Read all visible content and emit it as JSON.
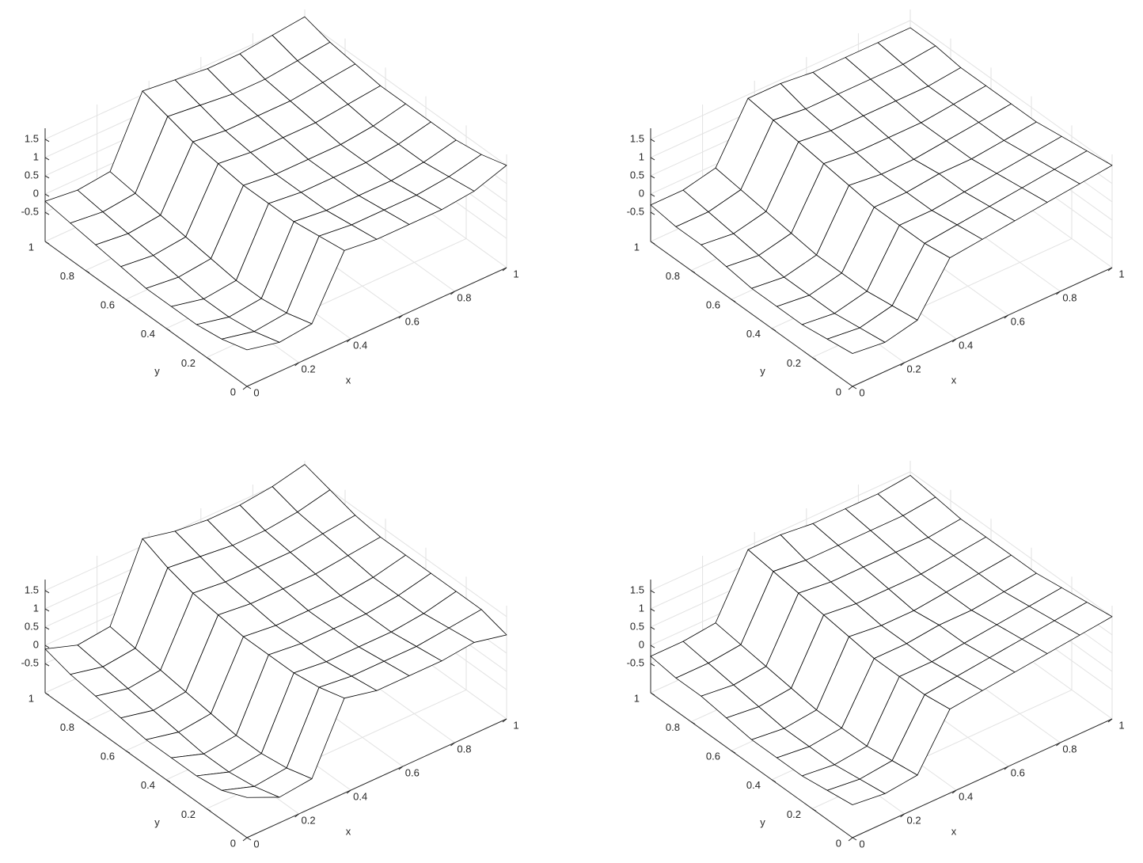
{
  "chart_data": [
    {
      "type": "surface",
      "xlabel": "x",
      "ylabel": "y",
      "x": [
        0,
        0.125,
        0.25,
        0.375,
        0.5,
        0.625,
        0.75,
        0.875,
        1
      ],
      "y": [
        0,
        0.125,
        0.25,
        0.375,
        0.5,
        0.625,
        0.75,
        0.875,
        1
      ],
      "z": [
        [
          -0.3,
          -0.5,
          -0.4,
          1.2,
          1.1,
          1.1,
          1.1,
          1.2,
          1.5
        ],
        [
          -0.5,
          -0.7,
          -0.6,
          1.1,
          1.0,
          1.0,
          1.0,
          1.1,
          1.3
        ],
        [
          -0.6,
          -0.8,
          -0.7,
          1.0,
          0.9,
          0.9,
          0.9,
          1.0,
          1.2
        ],
        [
          -0.6,
          -0.8,
          -0.7,
          1.0,
          0.9,
          0.9,
          0.9,
          1.0,
          1.2
        ],
        [
          -0.6,
          -0.7,
          -0.6,
          1.0,
          0.9,
          0.9,
          0.9,
          1.0,
          1.2
        ],
        [
          -0.5,
          -0.6,
          -0.5,
          1.1,
          1.0,
          1.0,
          1.0,
          1.1,
          1.2
        ],
        [
          -0.4,
          -0.5,
          -0.4,
          1.2,
          1.1,
          1.1,
          1.1,
          1.2,
          1.3
        ],
        [
          -0.3,
          -0.4,
          -0.3,
          1.4,
          1.3,
          1.2,
          1.2,
          1.3,
          1.4
        ],
        [
          -0.2,
          -0.3,
          -0.2,
          1.6,
          1.5,
          1.4,
          1.4,
          1.5,
          1.6
        ]
      ],
      "xlim": [
        0,
        1
      ],
      "ylim": [
        0,
        1
      ],
      "zlim": [
        -1.3,
        1.8
      ],
      "xticks": [
        0,
        0.2,
        0.4,
        0.6,
        0.8,
        1
      ],
      "yticks": [
        0,
        0.2,
        0.4,
        0.6,
        0.8,
        1
      ],
      "zticks": [
        -0.5,
        0,
        0.5,
        1,
        1.5
      ],
      "grid": true
    },
    {
      "type": "surface",
      "xlabel": "x",
      "ylabel": "y",
      "x": [
        0,
        0.125,
        0.25,
        0.375,
        0.5,
        0.625,
        0.75,
        0.875,
        1
      ],
      "y": [
        0,
        0.125,
        0.25,
        0.375,
        0.5,
        0.625,
        0.75,
        0.875,
        1
      ],
      "z": [
        [
          -0.4,
          -0.5,
          -0.3,
          1.0,
          1.1,
          1.2,
          1.3,
          1.4,
          1.5
        ],
        [
          -0.5,
          -0.6,
          -0.4,
          0.9,
          1.0,
          1.1,
          1.2,
          1.3,
          1.4
        ],
        [
          -0.6,
          -0.7,
          -0.5,
          0.9,
          0.9,
          1.0,
          1.1,
          1.2,
          1.3
        ],
        [
          -0.6,
          -0.7,
          -0.5,
          0.9,
          0.9,
          1.0,
          1.0,
          1.1,
          1.2
        ],
        [
          -0.6,
          -0.7,
          -0.5,
          1.0,
          0.9,
          0.9,
          1.0,
          1.1,
          1.2
        ],
        [
          -0.5,
          -0.6,
          -0.4,
          1.1,
          1.0,
          1.0,
          1.0,
          1.1,
          1.2
        ],
        [
          -0.4,
          -0.5,
          -0.3,
          1.2,
          1.1,
          1.1,
          1.1,
          1.1,
          1.2
        ],
        [
          -0.4,
          -0.4,
          -0.2,
          1.3,
          1.2,
          1.2,
          1.2,
          1.2,
          1.3
        ],
        [
          -0.3,
          -0.3,
          -0.1,
          1.4,
          1.4,
          1.3,
          1.3,
          1.3,
          1.3
        ]
      ],
      "xlim": [
        0,
        1
      ],
      "ylim": [
        0,
        1
      ],
      "zlim": [
        -1.3,
        1.8
      ],
      "xticks": [
        0,
        0.2,
        0.4,
        0.6,
        0.8,
        1
      ],
      "yticks": [
        0,
        0.2,
        0.4,
        0.6,
        0.8,
        1
      ],
      "zticks": [
        -0.5,
        0,
        0.5,
        1,
        1.5
      ],
      "grid": true
    },
    {
      "type": "surface",
      "xlabel": "x",
      "ylabel": "y",
      "x": [
        0,
        0.125,
        0.25,
        0.375,
        0.5,
        0.625,
        0.75,
        0.875,
        1
      ],
      "y": [
        0,
        0.125,
        0.25,
        0.375,
        0.5,
        0.625,
        0.75,
        0.875,
        1
      ],
      "z": [
        [
          -0.2,
          -0.6,
          -0.5,
          1.3,
          1.1,
          1.1,
          1.1,
          1.2,
          1.0
        ],
        [
          -0.5,
          -0.8,
          -0.7,
          1.1,
          1.0,
          1.0,
          1.0,
          1.1,
          1.2
        ],
        [
          -0.6,
          -0.9,
          -0.8,
          1.0,
          0.9,
          0.9,
          0.9,
          1.0,
          1.2
        ],
        [
          -0.6,
          -0.9,
          -0.8,
          1.0,
          0.9,
          0.9,
          0.9,
          1.0,
          1.2
        ],
        [
          -0.6,
          -0.8,
          -0.7,
          1.0,
          0.9,
          0.9,
          0.9,
          1.0,
          1.2
        ],
        [
          -0.5,
          -0.7,
          -0.6,
          1.1,
          1.0,
          1.0,
          1.0,
          1.1,
          1.2
        ],
        [
          -0.4,
          -0.6,
          -0.5,
          1.2,
          1.1,
          1.1,
          1.1,
          1.2,
          1.3
        ],
        [
          -0.3,
          -0.5,
          -0.4,
          1.4,
          1.3,
          1.2,
          1.2,
          1.3,
          1.5
        ],
        [
          -0.1,
          -0.4,
          -0.3,
          1.7,
          1.5,
          1.4,
          1.4,
          1.5,
          1.7
        ]
      ],
      "xlim": [
        0,
        1
      ],
      "ylim": [
        0,
        1
      ],
      "zlim": [
        -1.3,
        1.8
      ],
      "xticks": [
        0,
        0.2,
        0.4,
        0.6,
        0.8,
        1
      ],
      "yticks": [
        0,
        0.2,
        0.4,
        0.6,
        0.8,
        1
      ],
      "zticks": [
        -0.5,
        0,
        0.5,
        1,
        1.5
      ],
      "grid": true
    },
    {
      "type": "surface",
      "xlabel": "x",
      "ylabel": "y",
      "x": [
        0,
        0.125,
        0.25,
        0.375,
        0.5,
        0.625,
        0.75,
        0.875,
        1
      ],
      "y": [
        0,
        0.125,
        0.25,
        0.375,
        0.5,
        0.625,
        0.75,
        0.875,
        1
      ],
      "z": [
        [
          -0.4,
          -0.5,
          -0.4,
          1.0,
          1.1,
          1.2,
          1.3,
          1.4,
          1.5
        ],
        [
          -0.5,
          -0.6,
          -0.5,
          0.9,
          1.0,
          1.1,
          1.2,
          1.3,
          1.4
        ],
        [
          -0.6,
          -0.7,
          -0.6,
          0.9,
          0.9,
          1.0,
          1.1,
          1.2,
          1.3
        ],
        [
          -0.6,
          -0.7,
          -0.6,
          0.9,
          0.9,
          1.0,
          1.0,
          1.1,
          1.2
        ],
        [
          -0.6,
          -0.7,
          -0.6,
          1.0,
          0.9,
          0.9,
          1.0,
          1.1,
          1.2
        ],
        [
          -0.5,
          -0.6,
          -0.5,
          1.1,
          1.0,
          1.0,
          1.0,
          1.1,
          1.2
        ],
        [
          -0.4,
          -0.5,
          -0.4,
          1.2,
          1.1,
          1.1,
          1.1,
          1.1,
          1.2
        ],
        [
          -0.4,
          -0.4,
          -0.3,
          1.3,
          1.2,
          1.2,
          1.2,
          1.2,
          1.3
        ],
        [
          -0.3,
          -0.3,
          -0.2,
          1.4,
          1.4,
          1.3,
          1.3,
          1.3,
          1.4
        ]
      ],
      "xlim": [
        0,
        1
      ],
      "ylim": [
        0,
        1
      ],
      "zlim": [
        -1.3,
        1.8
      ],
      "xticks": [
        0,
        0.2,
        0.4,
        0.6,
        0.8,
        1
      ],
      "yticks": [
        0,
        0.2,
        0.4,
        0.6,
        0.8,
        1
      ],
      "zticks": [
        -0.5,
        0,
        0.5,
        1,
        1.5
      ],
      "grid": true
    }
  ]
}
